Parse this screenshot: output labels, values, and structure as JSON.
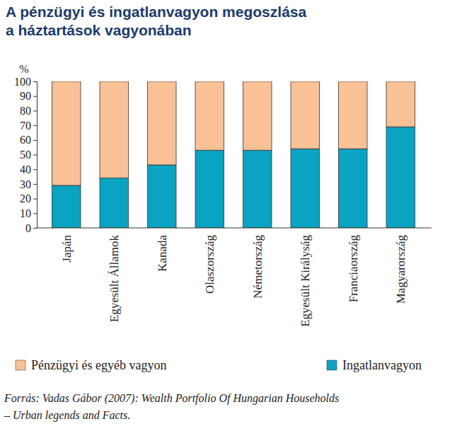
{
  "chart_data": {
    "type": "bar",
    "stacked": true,
    "title": [
      "A pénzügyi és ingatlanvagyon megoszlása",
      "a háztartások vagyonában"
    ],
    "y_label": "%",
    "categories": [
      "Japán",
      "Egyesült Államok",
      "Kanada",
      "Olaszország",
      "Németország",
      "Egyesült Királyság",
      "Franciaország",
      "Magyarország"
    ],
    "series": [
      {
        "name": "Ingatlanvagyon",
        "color": "#0aa3c2",
        "values": [
          29,
          34,
          43,
          53,
          53,
          54,
          54,
          69
        ]
      },
      {
        "name": "Pénzügyi és egyéb vagyon",
        "color": "#f9c196",
        "values": [
          71,
          66,
          57,
          47,
          47,
          46,
          46,
          31
        ]
      }
    ],
    "ylim": [
      0,
      100
    ],
    "yticks": [
      0,
      10,
      20,
      30,
      40,
      50,
      60,
      70,
      80,
      90,
      100
    ],
    "grid": false,
    "legend": "bottom",
    "source": [
      "Forrás: Vadas Gábor (2007): Wealth Portfolio Of Hungarian Households",
      "– Urban legends and Facts."
    ]
  }
}
